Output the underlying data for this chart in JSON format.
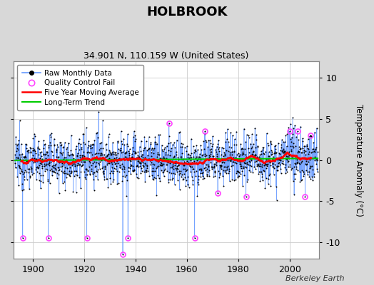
{
  "title": "HOLBROOK",
  "subtitle": "34.901 N, 110.159 W (United States)",
  "ylabel": "Temperature Anomaly (°C)",
  "credit": "Berkeley Earth",
  "year_start": 1893,
  "year_end": 2011,
  "ylim": [
    -12,
    12
  ],
  "yticks": [
    -10,
    -5,
    0,
    5,
    10
  ],
  "outer_bg": "#d8d8d8",
  "plot_bg_color": "#ffffff",
  "raw_line_color": "#6699ff",
  "dot_color": "#000000",
  "qc_color": "#ff44ff",
  "moving_avg_color": "#ff0000",
  "trend_color": "#00cc00",
  "grid_color": "#cccccc",
  "seed": 12345
}
